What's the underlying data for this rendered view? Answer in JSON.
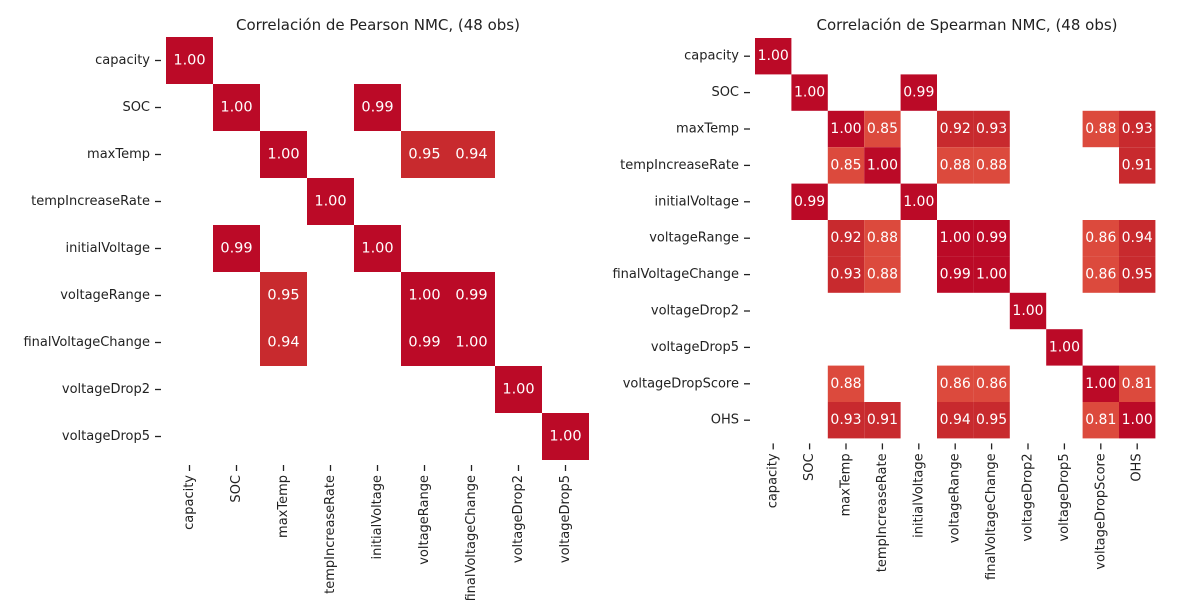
{
  "charts_colors": {
    "strong": "#bb0a27",
    "medium": "#c82a2e",
    "light": "#dc4a3d",
    "cell_text": "#ffffff",
    "axis_text": "#222222",
    "tick": "#222222",
    "background": "#ffffff"
  },
  "chart_data": [
    {
      "type": "heatmap",
      "title": "Correlación de Pearson NMC, (48 obs)",
      "row_labels": [
        "capacity",
        "SOC",
        "maxTemp",
        "tempIncreaseRate",
        "initialVoltage",
        "voltageRange",
        "finalVoltageChange",
        "voltageDrop2",
        "voltageDrop5"
      ],
      "col_labels": [
        "capacity",
        "SOC",
        "maxTemp",
        "tempIncreaseRate",
        "initialVoltage",
        "voltageRange",
        "finalVoltageChange",
        "voltageDrop2",
        "voltageDrop5"
      ],
      "values": [
        [
          1.0,
          null,
          null,
          null,
          null,
          null,
          null,
          null,
          null
        ],
        [
          null,
          1.0,
          null,
          null,
          0.99,
          null,
          null,
          null,
          null
        ],
        [
          null,
          null,
          1.0,
          null,
          null,
          0.95,
          0.94,
          null,
          null
        ],
        [
          null,
          null,
          null,
          1.0,
          null,
          null,
          null,
          null,
          null
        ],
        [
          null,
          0.99,
          null,
          null,
          1.0,
          null,
          null,
          null,
          null
        ],
        [
          null,
          null,
          0.95,
          null,
          null,
          1.0,
          0.99,
          null,
          null
        ],
        [
          null,
          null,
          0.94,
          null,
          null,
          0.99,
          1.0,
          null,
          null
        ],
        [
          null,
          null,
          null,
          null,
          null,
          null,
          null,
          1.0,
          null
        ],
        [
          null,
          null,
          null,
          null,
          null,
          null,
          null,
          null,
          1.0
        ]
      ]
    },
    {
      "type": "heatmap",
      "title": "Correlación de Spearman NMC, (48 obs)",
      "row_labels": [
        "capacity",
        "SOC",
        "maxTemp",
        "tempIncreaseRate",
        "initialVoltage",
        "voltageRange",
        "finalVoltageChange",
        "voltageDrop2",
        "voltageDrop5",
        "voltageDropScore",
        "OHS"
      ],
      "col_labels": [
        "capacity",
        "SOC",
        "maxTemp",
        "tempIncreaseRate",
        "initialVoltage",
        "voltageRange",
        "finalVoltageChange",
        "voltageDrop2",
        "voltageDrop5",
        "voltageDropScore",
        "OHS"
      ],
      "values": [
        [
          1.0,
          null,
          null,
          null,
          null,
          null,
          null,
          null,
          null,
          null,
          null
        ],
        [
          null,
          1.0,
          null,
          null,
          0.99,
          null,
          null,
          null,
          null,
          null,
          null
        ],
        [
          null,
          null,
          1.0,
          0.85,
          null,
          0.92,
          0.93,
          null,
          null,
          0.88,
          0.93
        ],
        [
          null,
          null,
          0.85,
          1.0,
          null,
          0.88,
          0.88,
          null,
          null,
          null,
          0.91
        ],
        [
          null,
          0.99,
          null,
          null,
          1.0,
          null,
          null,
          null,
          null,
          null,
          null
        ],
        [
          null,
          null,
          0.92,
          0.88,
          null,
          1.0,
          0.99,
          null,
          null,
          0.86,
          0.94
        ],
        [
          null,
          null,
          0.93,
          0.88,
          null,
          0.99,
          1.0,
          null,
          null,
          0.86,
          0.95
        ],
        [
          null,
          null,
          null,
          null,
          null,
          null,
          null,
          1.0,
          null,
          null,
          null
        ],
        [
          null,
          null,
          null,
          null,
          null,
          null,
          null,
          null,
          1.0,
          null,
          null
        ],
        [
          null,
          null,
          0.88,
          null,
          null,
          0.86,
          0.86,
          null,
          null,
          1.0,
          0.81
        ],
        [
          null,
          null,
          0.93,
          0.91,
          null,
          0.94,
          0.95,
          null,
          null,
          0.81,
          1.0
        ]
      ]
    }
  ]
}
